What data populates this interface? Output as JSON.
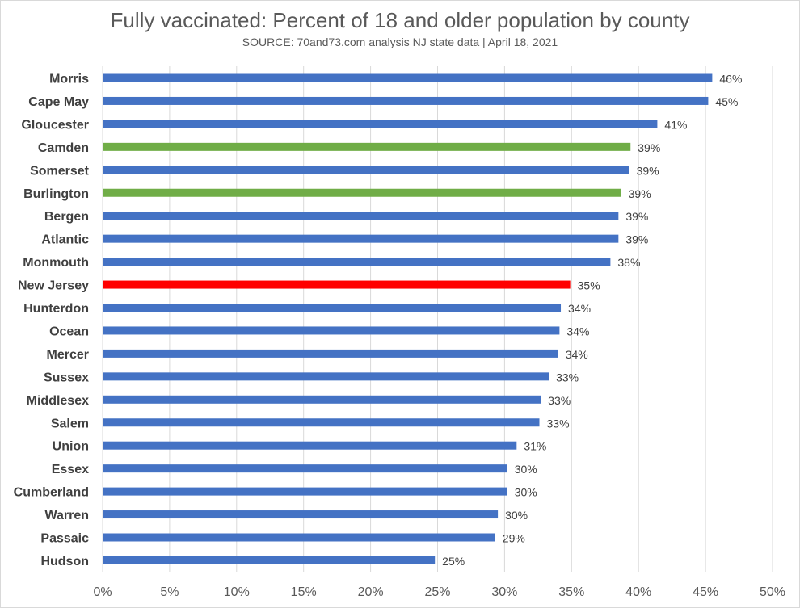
{
  "chart_data": {
    "type": "bar",
    "orientation": "horizontal",
    "title": "Fully vaccinated: Percent of 18 and older population by county",
    "subtitle": "SOURCE: 70and73.com analysis NJ state data | April 18, 2021",
    "xlabel": "",
    "ylabel": "",
    "xlim": [
      0,
      50
    ],
    "x_ticks": [
      0,
      5,
      10,
      15,
      20,
      25,
      30,
      35,
      40,
      45,
      50
    ],
    "x_tick_labels": [
      "0%",
      "5%",
      "10%",
      "15%",
      "20%",
      "25%",
      "30%",
      "35%",
      "40%",
      "45%",
      "50%"
    ],
    "grid": "vertical",
    "legend": "none",
    "colors": {
      "default": "#4472c4",
      "highlight": "#70ad47",
      "state": "#ff0000"
    },
    "bars": [
      {
        "category": "Morris",
        "value": 45.5,
        "label": "46%",
        "color": "#4472c4"
      },
      {
        "category": "Cape May",
        "value": 45.2,
        "label": "45%",
        "color": "#4472c4"
      },
      {
        "category": "Gloucester",
        "value": 41.4,
        "label": "41%",
        "color": "#4472c4"
      },
      {
        "category": "Camden",
        "value": 39.4,
        "label": "39%",
        "color": "#70ad47"
      },
      {
        "category": "Somerset",
        "value": 39.3,
        "label": "39%",
        "color": "#4472c4"
      },
      {
        "category": "Burlington",
        "value": 38.7,
        "label": "39%",
        "color": "#70ad47"
      },
      {
        "category": "Bergen",
        "value": 38.5,
        "label": "39%",
        "color": "#4472c4"
      },
      {
        "category": "Atlantic",
        "value": 38.5,
        "label": "39%",
        "color": "#4472c4"
      },
      {
        "category": "Monmouth",
        "value": 37.9,
        "label": "38%",
        "color": "#4472c4"
      },
      {
        "category": "New Jersey",
        "value": 34.9,
        "label": "35%",
        "color": "#ff0000"
      },
      {
        "category": "Hunterdon",
        "value": 34.2,
        "label": "34%",
        "color": "#4472c4"
      },
      {
        "category": "Ocean",
        "value": 34.1,
        "label": "34%",
        "color": "#4472c4"
      },
      {
        "category": "Mercer",
        "value": 34.0,
        "label": "34%",
        "color": "#4472c4"
      },
      {
        "category": "Sussex",
        "value": 33.3,
        "label": "33%",
        "color": "#4472c4"
      },
      {
        "category": "Middlesex",
        "value": 32.7,
        "label": "33%",
        "color": "#4472c4"
      },
      {
        "category": "Salem",
        "value": 32.6,
        "label": "33%",
        "color": "#4472c4"
      },
      {
        "category": "Union",
        "value": 30.9,
        "label": "31%",
        "color": "#4472c4"
      },
      {
        "category": "Essex",
        "value": 30.2,
        "label": "30%",
        "color": "#4472c4"
      },
      {
        "category": "Cumberland",
        "value": 30.2,
        "label": "30%",
        "color": "#4472c4"
      },
      {
        "category": "Warren",
        "value": 29.5,
        "label": "30%",
        "color": "#4472c4"
      },
      {
        "category": "Passaic",
        "value": 29.3,
        "label": "29%",
        "color": "#4472c4"
      },
      {
        "category": "Hudson",
        "value": 24.8,
        "label": "25%",
        "color": "#4472c4"
      }
    ]
  }
}
